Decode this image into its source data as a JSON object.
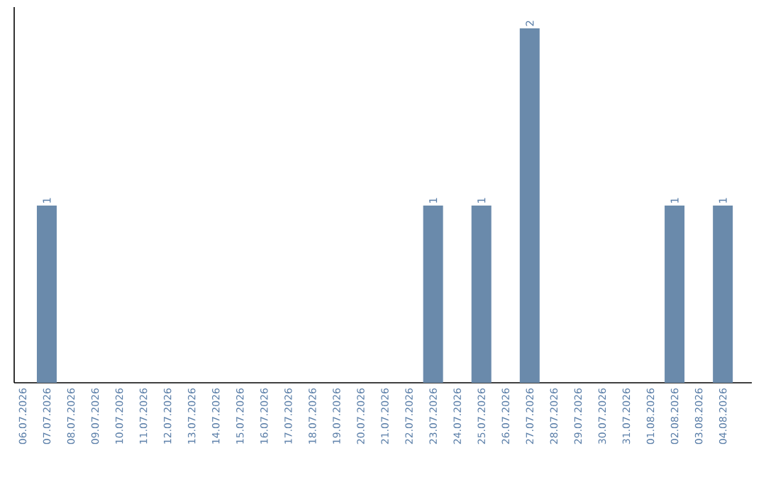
{
  "chart_data": {
    "type": "bar",
    "categories": [
      "06.07.2026",
      "07.07.2026",
      "08.07.2026",
      "09.07.2026",
      "10.07.2026",
      "11.07.2026",
      "12.07.2026",
      "13.07.2026",
      "14.07.2026",
      "15.07.2026",
      "16.07.2026",
      "17.07.2026",
      "18.07.2026",
      "19.07.2026",
      "20.07.2026",
      "21.07.2026",
      "22.07.2026",
      "23.07.2026",
      "24.07.2026",
      "25.07.2026",
      "26.07.2026",
      "27.07.2026",
      "28.07.2026",
      "29.07.2026",
      "30.07.2026",
      "31.07.2026",
      "01.08.2026",
      "02.08.2026",
      "03.08.2026",
      "04.08.2026"
    ],
    "values": [
      0,
      1,
      0,
      0,
      0,
      0,
      0,
      0,
      0,
      0,
      0,
      0,
      0,
      0,
      0,
      0,
      0,
      1,
      0,
      1,
      0,
      2,
      0,
      0,
      0,
      0,
      0,
      1,
      0,
      1
    ],
    "value_labels": [
      null,
      "1",
      null,
      null,
      null,
      null,
      null,
      null,
      null,
      null,
      null,
      null,
      null,
      null,
      null,
      null,
      null,
      "1",
      null,
      "1",
      null,
      "2",
      null,
      null,
      null,
      null,
      null,
      "1",
      null,
      "1"
    ],
    "color": "#6a8aab",
    "tick_labels": "x",
    "grid": false
  }
}
